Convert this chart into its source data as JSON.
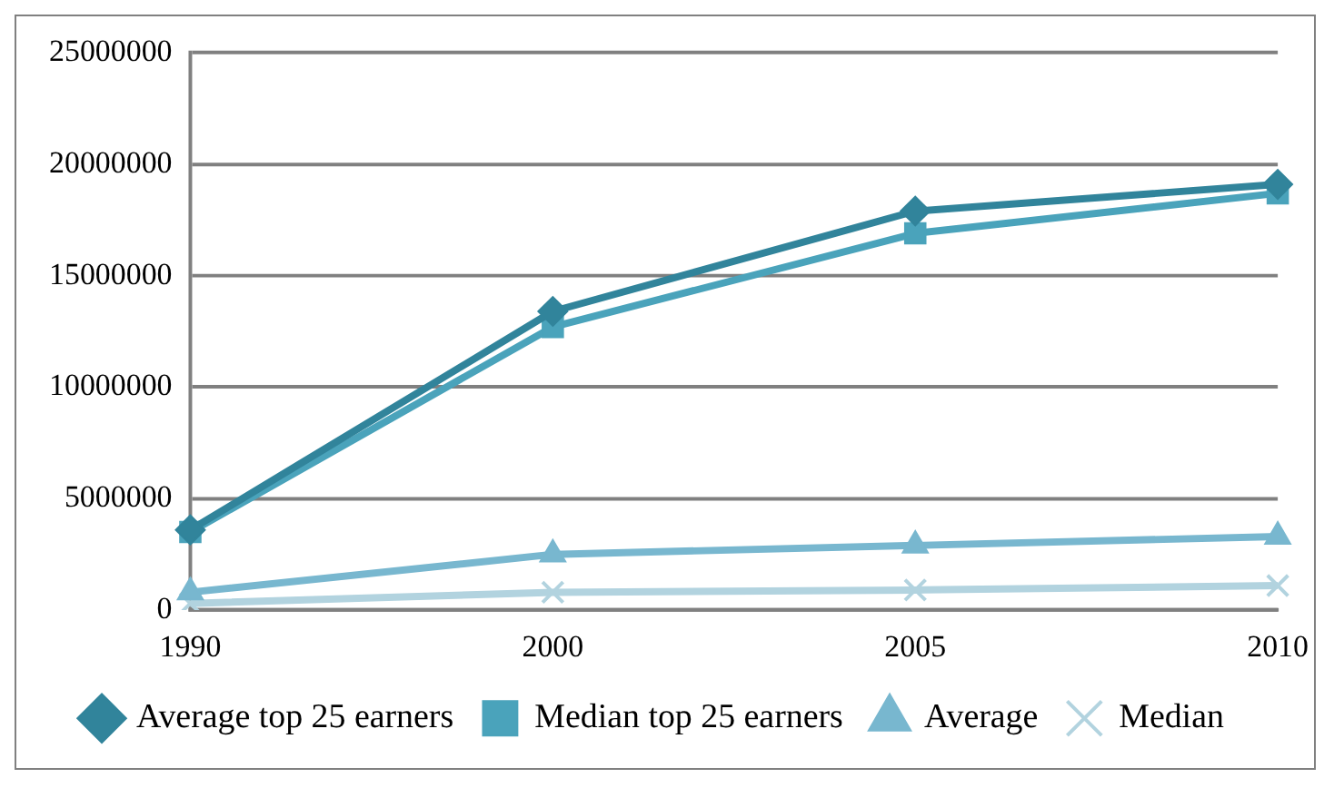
{
  "chart_data": {
    "type": "line",
    "categories": [
      "1990",
      "2000",
      "2005",
      "2010"
    ],
    "series": [
      {
        "name": "Average top 25 earners",
        "color": "#31849b",
        "marker": "diamond",
        "values": [
          3600000,
          13400000,
          17900000,
          19100000
        ]
      },
      {
        "name": "Median top 25 earners",
        "color": "#4aa3bb",
        "marker": "square",
        "values": [
          3500000,
          12700000,
          16900000,
          18700000
        ]
      },
      {
        "name": "Average",
        "color": "#78b7cf",
        "marker": "triangle",
        "values": [
          800000,
          2500000,
          2900000,
          3300000
        ]
      },
      {
        "name": "Median",
        "color": "#b2d3df",
        "marker": "cross",
        "values": [
          300000,
          800000,
          900000,
          1100000
        ]
      }
    ],
    "ylim": [
      0,
      25000000
    ],
    "yticks": [
      0,
      5000000,
      10000000,
      15000000,
      20000000,
      25000000
    ],
    "grid": "y",
    "legend": "bottom",
    "line_style": "solid"
  }
}
